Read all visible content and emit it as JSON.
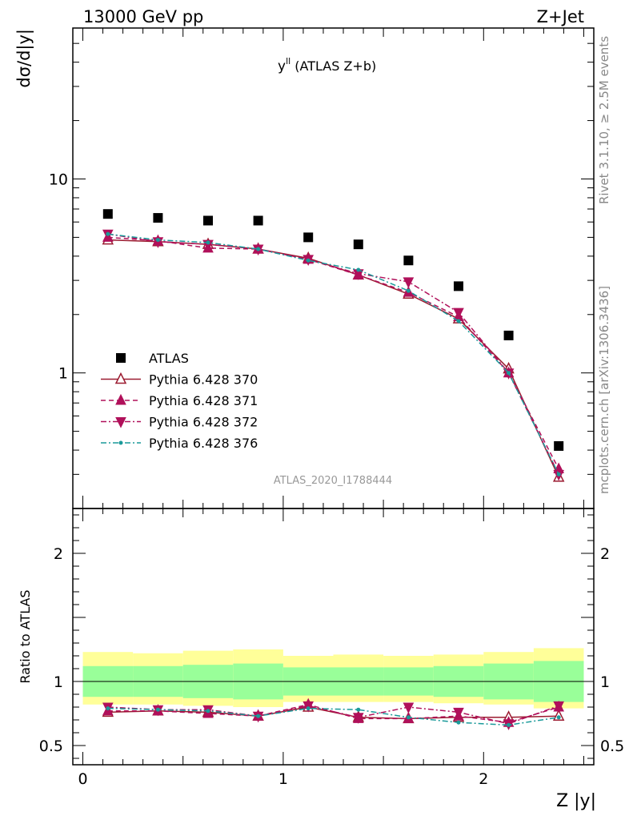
{
  "header": {
    "left": "13000 GeV pp",
    "right": "Z+Jet"
  },
  "side_labels": {
    "rivet": "Rivet 3.1.10, ≥ 2.5M events",
    "mcplots": "mcplots.cern.ch [arXiv:1306.3436]"
  },
  "chart_data": [
    {
      "type": "scatter",
      "title": "y^ll (ATLAS Z+b)",
      "title_main": "y",
      "title_sup": "ll",
      "title_rest": " (ATLAS Z+b)",
      "ylabel": "dσ/d|y|",
      "yscale": "log",
      "ylim": [
        0.2,
        60
      ],
      "xlim": [
        -0.05,
        2.55
      ],
      "ytick_labels": [
        "1",
        "10"
      ],
      "watermark": "ATLAS_2020_I1788444",
      "legend_position": "center-left",
      "x": [
        0.125,
        0.375,
        0.625,
        0.875,
        1.125,
        1.375,
        1.625,
        1.875,
        2.125,
        2.375
      ],
      "series": [
        {
          "name": "ATLAS",
          "marker": "filled-square",
          "line": "none",
          "color": "#000000",
          "values": [
            6.6,
            6.3,
            6.1,
            6.1,
            5.0,
            4.6,
            3.8,
            2.8,
            1.56,
            0.42
          ]
        },
        {
          "name": "Pythia 6.428 370",
          "marker": "open-triangle-up",
          "line": "solid",
          "color": "#9b1b30",
          "values": [
            4.85,
            4.75,
            4.6,
            4.35,
            3.9,
            3.2,
            2.55,
            1.9,
            1.05,
            0.29
          ]
        },
        {
          "name": "Pythia 6.428 371",
          "marker": "filled-triangle-up",
          "line": "dashed",
          "color": "#b0105a",
          "values": [
            5.0,
            4.8,
            4.4,
            4.35,
            3.85,
            3.2,
            2.6,
            1.95,
            1.0,
            0.32
          ]
        },
        {
          "name": "Pythia 6.428 372",
          "marker": "filled-triangle-down",
          "line": "dashdot",
          "color": "#b0105a",
          "values": [
            5.2,
            4.75,
            4.6,
            4.35,
            3.85,
            3.25,
            2.95,
            2.05,
            1.0,
            0.3
          ]
        },
        {
          "name": "Pythia 6.428 376",
          "marker": "small-dot",
          "line": "dashdot",
          "color": "#1a9a9a",
          "values": [
            5.2,
            4.85,
            4.7,
            4.35,
            3.8,
            3.4,
            2.65,
            1.85,
            1.0,
            0.3
          ]
        }
      ]
    },
    {
      "type": "line",
      "ylabel": "Ratio to ATLAS",
      "xlabel": "Z |y|",
      "ylim": [
        0.35,
        2.35
      ],
      "xlim": [
        -0.05,
        2.55
      ],
      "ytick_labels": [
        "0.5",
        "1",
        "2"
      ],
      "xtick_labels": [
        "0",
        "1",
        "2"
      ],
      "reference_line": 1.0,
      "bands": {
        "inner_color": "#99ff99",
        "outer_color": "#ffff99",
        "inner": [
          [
            0.88,
            1.12
          ],
          [
            0.88,
            1.12
          ],
          [
            0.87,
            1.13
          ],
          [
            0.86,
            1.14
          ],
          [
            0.89,
            1.11
          ],
          [
            0.89,
            1.11
          ],
          [
            0.89,
            1.11
          ],
          [
            0.88,
            1.12
          ],
          [
            0.86,
            1.14
          ],
          [
            0.84,
            1.16
          ]
        ],
        "outer": [
          [
            0.82,
            1.23
          ],
          [
            0.82,
            1.22
          ],
          [
            0.81,
            1.24
          ],
          [
            0.8,
            1.25
          ],
          [
            0.84,
            1.2
          ],
          [
            0.84,
            1.21
          ],
          [
            0.84,
            1.2
          ],
          [
            0.83,
            1.21
          ],
          [
            0.82,
            1.23
          ],
          [
            0.79,
            1.26
          ]
        ]
      },
      "x": [
        0.125,
        0.375,
        0.625,
        0.875,
        1.125,
        1.375,
        1.625,
        1.875,
        2.125,
        2.375
      ],
      "series": [
        {
          "name": "Pythia 6.428 370",
          "marker": "open-triangle-up",
          "line": "solid",
          "color": "#9b1b30",
          "values": [
            0.76,
            0.77,
            0.76,
            0.73,
            0.8,
            0.72,
            0.71,
            0.72,
            0.72,
            0.73
          ]
        },
        {
          "name": "Pythia 6.428 371",
          "marker": "filled-triangle-up",
          "line": "dashed",
          "color": "#b0105a",
          "values": [
            0.77,
            0.77,
            0.75,
            0.73,
            0.82,
            0.71,
            0.71,
            0.73,
            0.68,
            0.8
          ]
        },
        {
          "name": "Pythia 6.428 372",
          "marker": "filled-triangle-down",
          "line": "dashdot",
          "color": "#b0105a",
          "values": [
            0.8,
            0.78,
            0.78,
            0.73,
            0.81,
            0.72,
            0.8,
            0.76,
            0.67,
            0.81
          ]
        },
        {
          "name": "Pythia 6.428 376",
          "marker": "small-dot",
          "line": "dashdot",
          "color": "#1a9a9a",
          "values": [
            0.79,
            0.78,
            0.77,
            0.73,
            0.79,
            0.78,
            0.72,
            0.68,
            0.66,
            0.72
          ]
        }
      ]
    }
  ]
}
